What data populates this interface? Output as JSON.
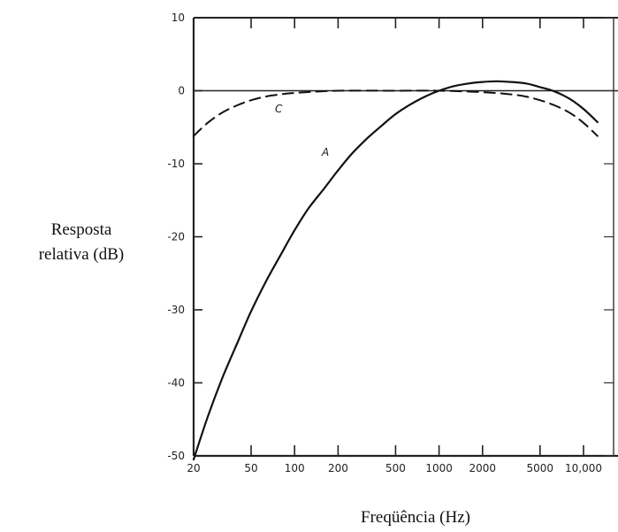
{
  "chart_data": {
    "type": "line",
    "ylabel_line1": "Resposta",
    "ylabel_line2": "relativa (dB)",
    "xlabel": "Freqüência (Hz)",
    "x_scale": "log",
    "xlim": [
      20,
      20000
    ],
    "ylim": [
      -50,
      10
    ],
    "x_ticks": [
      20,
      50,
      100,
      200,
      500,
      1000,
      2000,
      5000,
      10000
    ],
    "x_tick_labels": [
      "20",
      "50",
      "100",
      "200",
      "500",
      "1000",
      "2000",
      "5000",
      "10,000"
    ],
    "y_ticks": [
      10,
      0,
      -10,
      -20,
      -30,
      -40,
      -50
    ],
    "y_tick_labels": [
      "10",
      "0",
      "-10",
      "-20",
      "-30",
      "-40",
      "-50"
    ],
    "reference_line_y": 0,
    "grid": false,
    "series": [
      {
        "name": "A",
        "style": "solid",
        "x": [
          20,
          25,
          31.5,
          40,
          50,
          63,
          80,
          100,
          125,
          160,
          200,
          250,
          315,
          400,
          500,
          630,
          800,
          1000,
          1250,
          1600,
          2000,
          2500,
          3150,
          4000,
          5000,
          6300,
          8000,
          10000,
          12500
        ],
        "y": [
          -50.5,
          -44.7,
          -39.4,
          -34.6,
          -30.2,
          -26.2,
          -22.5,
          -19.1,
          -16.1,
          -13.4,
          -10.9,
          -8.6,
          -6.6,
          -4.8,
          -3.2,
          -1.9,
          -0.8,
          0.0,
          0.6,
          1.0,
          1.2,
          1.3,
          1.2,
          1.0,
          0.5,
          -0.1,
          -1.1,
          -2.5,
          -4.3
        ]
      },
      {
        "name": "C",
        "style": "dashed",
        "x": [
          20,
          25,
          31.5,
          40,
          50,
          63,
          80,
          100,
          200,
          500,
          1000,
          2000,
          3150,
          4000,
          5000,
          6300,
          8000,
          10000,
          12500
        ],
        "y": [
          -6.2,
          -4.4,
          -3.0,
          -2.0,
          -1.3,
          -0.8,
          -0.5,
          -0.3,
          0.0,
          0.0,
          0.0,
          -0.2,
          -0.5,
          -0.8,
          -1.3,
          -2.0,
          -3.0,
          -4.4,
          -6.2
        ]
      }
    ]
  }
}
